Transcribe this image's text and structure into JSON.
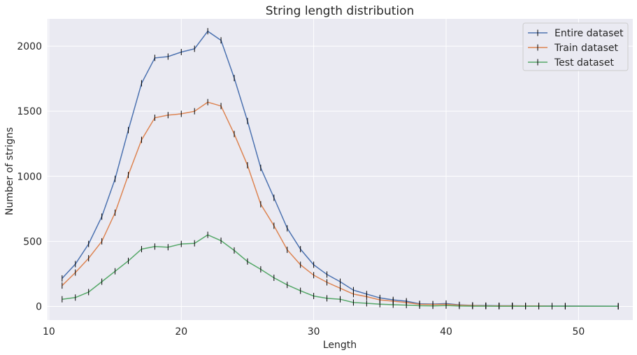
{
  "chart_data": {
    "type": "line",
    "title": "String length distribution",
    "xlabel": "Length",
    "ylabel": "Number of strigns",
    "xlim": [
      9.9,
      54.1
    ],
    "ylim": [
      -105,
      2210
    ],
    "xticks": [
      10,
      20,
      30,
      40,
      50
    ],
    "yticks": [
      0,
      500,
      1000,
      1500,
      2000
    ],
    "grid": true,
    "legend_position": "top-right",
    "x": [
      11,
      12,
      13,
      14,
      15,
      16,
      17,
      18,
      19,
      20,
      21,
      22,
      23,
      24,
      25,
      26,
      27,
      28,
      29,
      30,
      31,
      32,
      33,
      34,
      35,
      36,
      37,
      38,
      39,
      40,
      41,
      42,
      43,
      44,
      45,
      46,
      47,
      48,
      49,
      53
    ],
    "series": [
      {
        "name": "Entire dataset",
        "color": "#4c72b0",
        "values": [
          215,
          325,
          480,
          690,
          980,
          1355,
          1715,
          1910,
          1920,
          1955,
          1980,
          2115,
          2045,
          1755,
          1425,
          1065,
          835,
          600,
          440,
          320,
          245,
          190,
          125,
          95,
          65,
          50,
          40,
          20,
          18,
          22,
          12,
          8,
          6,
          5,
          5,
          4,
          4,
          3,
          3,
          2
        ]
      },
      {
        "name": "Train dataset",
        "color": "#dd8452",
        "values": [
          160,
          260,
          370,
          500,
          720,
          1010,
          1280,
          1450,
          1470,
          1480,
          1500,
          1570,
          1540,
          1325,
          1085,
          785,
          620,
          435,
          320,
          240,
          185,
          140,
          95,
          75,
          50,
          40,
          30,
          16,
          14,
          16,
          9,
          6,
          4,
          4,
          4,
          3,
          3,
          2,
          2,
          1
        ]
      },
      {
        "name": "Test dataset",
        "color": "#55a868",
        "values": [
          55,
          68,
          110,
          190,
          270,
          350,
          440,
          460,
          455,
          480,
          485,
          550,
          505,
          430,
          345,
          285,
          220,
          165,
          120,
          80,
          62,
          55,
          30,
          24,
          17,
          13,
          10,
          5,
          4,
          6,
          3,
          2,
          2,
          1,
          1,
          1,
          1,
          1,
          1,
          1
        ]
      }
    ]
  }
}
